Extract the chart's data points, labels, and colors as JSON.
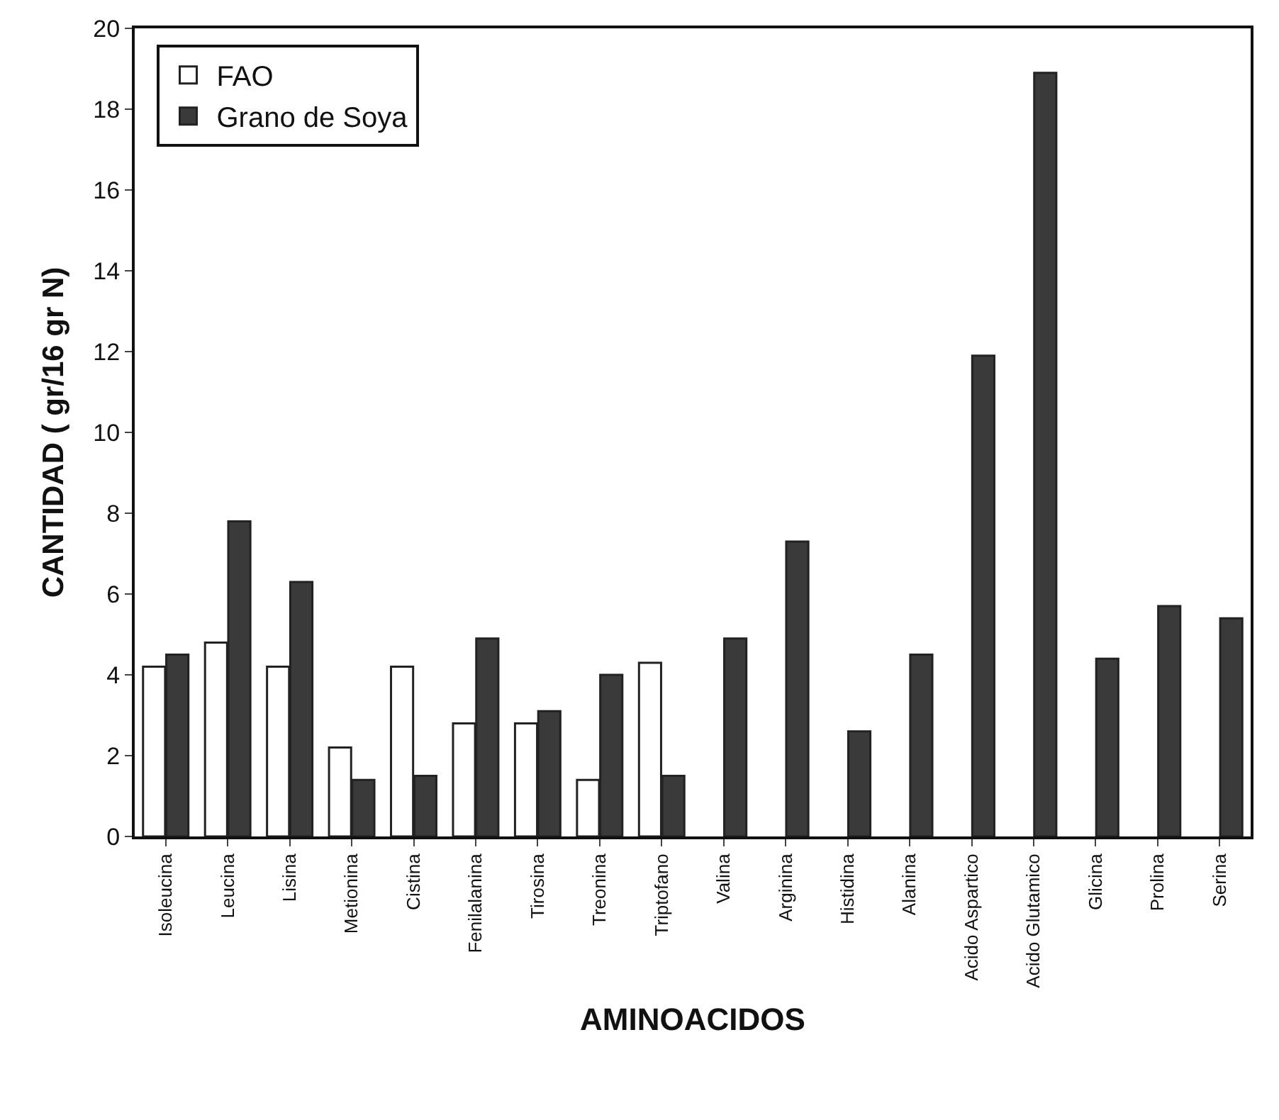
{
  "chart_data": {
    "type": "bar",
    "xlabel": "AMINOACIDOS",
    "ylabel": "CANTIDAD ( gr/16 gr N)",
    "categories": [
      "Isoleucina",
      "Leucina",
      "Lisina",
      "Metionina",
      "Cistina",
      "Fenilalanina",
      "Tirosina",
      "Treonina",
      "Triptofano",
      "Valina",
      "Arginina",
      "Histidina",
      "Alanina",
      "Acido Aspartico",
      "Acido Glutamico",
      "Glicina",
      "Prolina",
      "Serina"
    ],
    "series": [
      {
        "name": "FAO",
        "color": "#ffffff",
        "values": [
          4.2,
          4.8,
          4.2,
          2.2,
          4.2,
          2.8,
          2.8,
          1.4,
          4.3,
          null,
          null,
          null,
          null,
          null,
          null,
          null,
          null,
          null
        ]
      },
      {
        "name": "Grano de Soya",
        "color": "#3a3a3a",
        "values": [
          4.5,
          7.8,
          6.3,
          1.4,
          1.5,
          4.9,
          3.1,
          4.0,
          1.5,
          4.9,
          7.3,
          2.6,
          4.5,
          11.9,
          18.9,
          4.4,
          5.7,
          5.4
        ]
      }
    ],
    "ylim": [
      0,
      20
    ],
    "yticks": [
      0,
      2,
      4,
      6,
      8,
      10,
      12,
      14,
      16,
      18,
      20
    ],
    "legend": "top left"
  }
}
